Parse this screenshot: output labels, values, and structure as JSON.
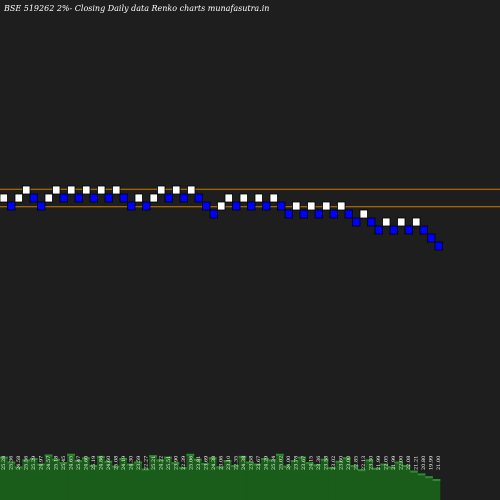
{
  "chart_data": {
    "type": "renko",
    "title": "BSE 519262  2%-  Closing Daily data  Renko  charts munafasutra.in",
    "reference_lines": [
      26.0,
      24.9
    ],
    "bricks": [
      {
        "dir": "up",
        "low": 25.2,
        "high": 25.7
      },
      {
        "dir": "down",
        "low": 24.7,
        "high": 25.2
      },
      {
        "dir": "up",
        "low": 25.2,
        "high": 25.7
      },
      {
        "dir": "up",
        "low": 25.7,
        "high": 26.2
      },
      {
        "dir": "down",
        "low": 25.2,
        "high": 25.7
      },
      {
        "dir": "down",
        "low": 24.7,
        "high": 25.2
      },
      {
        "dir": "up",
        "low": 25.2,
        "high": 25.7
      },
      {
        "dir": "up",
        "low": 25.7,
        "high": 26.2
      },
      {
        "dir": "down",
        "low": 25.2,
        "high": 25.7
      },
      {
        "dir": "up",
        "low": 25.7,
        "high": 26.2
      },
      {
        "dir": "down",
        "low": 25.2,
        "high": 25.7
      },
      {
        "dir": "up",
        "low": 25.7,
        "high": 26.2
      },
      {
        "dir": "down",
        "low": 25.2,
        "high": 25.7
      },
      {
        "dir": "up",
        "low": 25.7,
        "high": 26.2
      },
      {
        "dir": "down",
        "low": 25.2,
        "high": 25.7
      },
      {
        "dir": "up",
        "low": 25.7,
        "high": 26.2
      },
      {
        "dir": "down",
        "low": 25.2,
        "high": 25.7
      },
      {
        "dir": "down",
        "low": 24.7,
        "high": 25.2
      },
      {
        "dir": "up",
        "low": 25.2,
        "high": 25.7
      },
      {
        "dir": "down",
        "low": 24.7,
        "high": 25.2
      },
      {
        "dir": "up",
        "low": 25.2,
        "high": 25.7
      },
      {
        "dir": "up",
        "low": 25.7,
        "high": 26.2
      },
      {
        "dir": "down",
        "low": 25.2,
        "high": 25.7
      },
      {
        "dir": "up",
        "low": 25.7,
        "high": 26.2
      },
      {
        "dir": "down",
        "low": 25.2,
        "high": 25.7
      },
      {
        "dir": "up",
        "low": 25.7,
        "high": 26.2
      },
      {
        "dir": "down",
        "low": 25.2,
        "high": 25.7
      },
      {
        "dir": "down",
        "low": 24.7,
        "high": 25.2
      },
      {
        "dir": "down",
        "low": 24.2,
        "high": 24.7
      },
      {
        "dir": "up",
        "low": 24.7,
        "high": 25.2
      },
      {
        "dir": "up",
        "low": 25.2,
        "high": 25.7
      },
      {
        "dir": "down",
        "low": 24.7,
        "high": 25.2
      },
      {
        "dir": "up",
        "low": 25.2,
        "high": 25.7
      },
      {
        "dir": "down",
        "low": 24.7,
        "high": 25.2
      },
      {
        "dir": "up",
        "low": 25.2,
        "high": 25.7
      },
      {
        "dir": "down",
        "low": 24.7,
        "high": 25.2
      },
      {
        "dir": "up",
        "low": 25.2,
        "high": 25.7
      },
      {
        "dir": "down",
        "low": 24.7,
        "high": 25.2
      },
      {
        "dir": "down",
        "low": 24.2,
        "high": 24.7
      },
      {
        "dir": "up",
        "low": 24.7,
        "high": 25.2
      },
      {
        "dir": "down",
        "low": 24.2,
        "high": 24.7
      },
      {
        "dir": "up",
        "low": 24.7,
        "high": 25.2
      },
      {
        "dir": "down",
        "low": 24.2,
        "high": 24.7
      },
      {
        "dir": "up",
        "low": 24.7,
        "high": 25.2
      },
      {
        "dir": "down",
        "low": 24.2,
        "high": 24.7
      },
      {
        "dir": "up",
        "low": 24.7,
        "high": 25.2
      },
      {
        "dir": "down",
        "low": 24.2,
        "high": 24.7
      },
      {
        "dir": "down",
        "low": 23.7,
        "high": 24.2
      },
      {
        "dir": "up",
        "low": 24.2,
        "high": 24.7
      },
      {
        "dir": "down",
        "low": 23.7,
        "high": 24.2
      },
      {
        "dir": "down",
        "low": 23.2,
        "high": 23.7
      },
      {
        "dir": "up",
        "low": 23.7,
        "high": 24.2
      },
      {
        "dir": "down",
        "low": 23.2,
        "high": 23.7
      },
      {
        "dir": "up",
        "low": 23.7,
        "high": 24.2
      },
      {
        "dir": "down",
        "low": 23.2,
        "high": 23.7
      },
      {
        "dir": "up",
        "low": 23.7,
        "high": 24.2
      },
      {
        "dir": "down",
        "low": 23.2,
        "high": 23.7
      },
      {
        "dir": "down",
        "low": 22.7,
        "high": 23.2
      },
      {
        "dir": "down",
        "low": 22.2,
        "high": 22.7
      }
    ],
    "price_labels": [
      "25.28",
      "25.36",
      "24.58",
      "25.56",
      "25.29",
      "24.97",
      "24.57",
      "25.18",
      "25.45",
      "24.65",
      "25.47",
      "24.60",
      "25.19",
      "24.86",
      "24.60",
      "25.08",
      "24.19",
      "24.30",
      "23.59",
      "22.27",
      "25.21",
      "24.22",
      "25.51",
      "23.90",
      "22.39",
      "25.06",
      "23.81",
      "23.69",
      "24.38",
      "23.06",
      "23.10",
      "22.35",
      "24.38",
      "23.58",
      "23.67",
      "24.29",
      "25.34",
      "25.02",
      "24.00",
      "23.78",
      "23.67",
      "24.15",
      "23.36",
      "23.58",
      "23.02",
      "23.60",
      "23.00",
      "22.85",
      "22.13",
      "23.30",
      "21.99",
      "22.05",
      "21.99",
      "22.00",
      "22.08",
      "21.21",
      "20.80",
      "19.99",
      "21.00"
    ],
    "volume_heights": [
      0.62,
      0.55,
      0.48,
      0.58,
      0.6,
      0.52,
      0.65,
      0.59,
      0.54,
      0.66,
      0.57,
      0.61,
      0.5,
      0.63,
      0.56,
      0.49,
      0.6,
      0.52,
      0.55,
      0.45,
      0.64,
      0.58,
      0.62,
      0.54,
      0.47,
      0.66,
      0.59,
      0.53,
      0.61,
      0.48,
      0.57,
      0.5,
      0.63,
      0.55,
      0.52,
      0.6,
      0.58,
      0.66,
      0.49,
      0.57,
      0.62,
      0.54,
      0.51,
      0.59,
      0.47,
      0.56,
      0.61,
      0.5,
      0.44,
      0.58,
      0.46,
      0.52,
      0.48,
      0.55,
      0.5,
      0.42,
      0.38,
      0.34,
      0.3
    ],
    "colors": {
      "background": "#1e1e1e",
      "up_brick": "#ffffff",
      "down_brick": "#0000ff",
      "brick_border": "#000000",
      "reference_line": "#cc7a00",
      "volume_bar": "#1a5c1a",
      "volume_top": "#2f8a2f"
    }
  }
}
